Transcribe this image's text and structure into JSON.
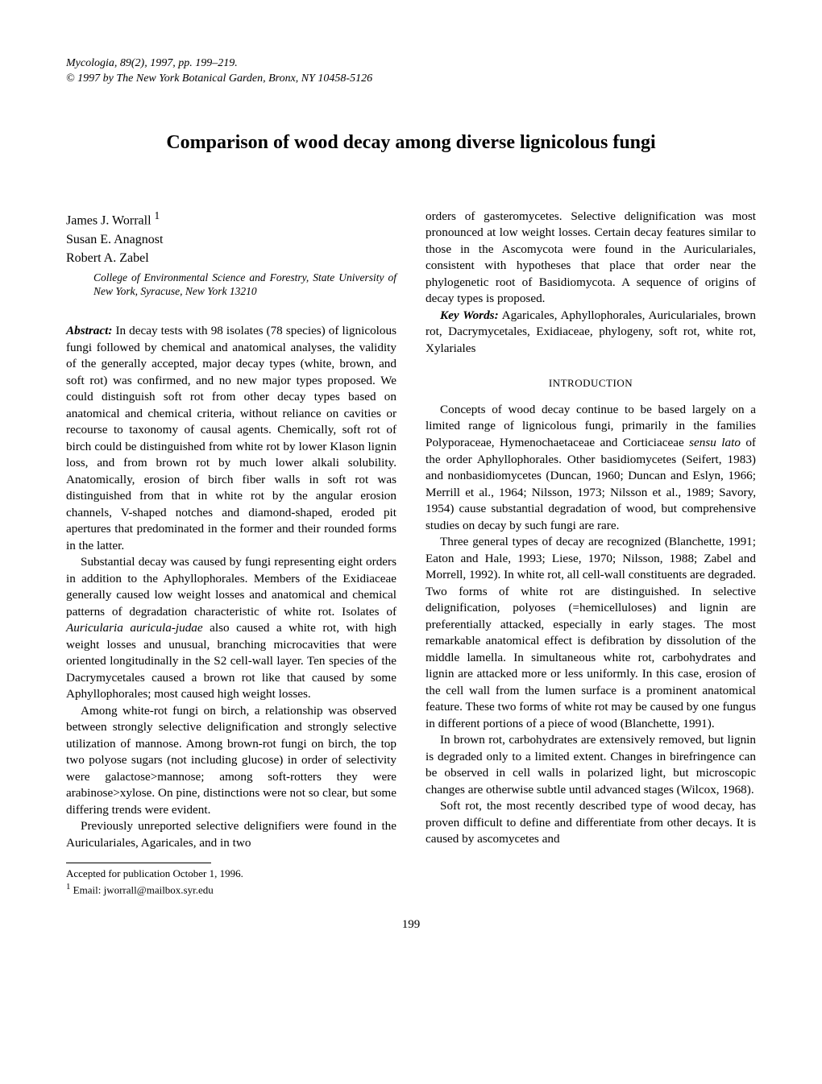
{
  "header": {
    "line1": "Mycologia, 89(2), 1997, pp. 199–219.",
    "line2": "© 1997 by The New York Botanical Garden, Bronx, NY 10458-5126"
  },
  "title": "Comparison of wood decay among diverse lignicolous fungi",
  "authors": {
    "a1": "James J. Worrall ",
    "a1_sup": "1",
    "a2": "Susan E. Anagnost",
    "a3": "Robert A. Zabel"
  },
  "affiliation": "College of Environmental Science and Forestry, State University of New York, Syracuse, New York 13210",
  "abstract_label": "Abstract:",
  "abstract_p1_rest": "   In decay tests with 98 isolates (78 species) of lignicolous fungi followed by chemical and anatomical analyses, the validity of the generally accepted, major decay types (white, brown, and soft rot) was confirmed, and no new major types proposed. We could distinguish soft rot from other decay types based on anatomical and chemical criteria, without reliance on cavities or recourse to taxonomy of causal agents. Chemically, soft rot of birch could be distinguished from white rot by lower Klason lignin loss, and from brown rot by much lower alkali solubility. Anatomically, erosion of birch fiber walls in soft rot was distinguished from that in white rot by the angular erosion channels, V-shaped notches and diamond-shaped, eroded pit apertures that predominated in the former and their rounded forms in the latter.",
  "abstract_p2a": "Substantial decay was caused by fungi representing eight orders in addition to the Aphyllophorales. Members of the Exidiaceae generally caused low weight losses and anatomical and chemical patterns of degradation characteristic of white rot. Isolates of ",
  "abstract_p2_ital": "Auricularia auricula-judae",
  "abstract_p2b": " also caused a white rot, with high weight losses and unusual, branching microcavities that were oriented longitudinally in the S2 cell-wall layer. Ten species of the Dacrymycetales caused a brown rot like that caused by some Aphyllophorales; most caused high weight losses.",
  "abstract_p3": "Among white-rot fungi on birch, a relationship was observed between strongly selective delignification and strongly selective utilization of mannose. Among brown-rot fungi on birch, the top two polyose sugars (not including glucose) in order of selectivity were galactose>mannose; among soft-rotters they were arabinose>xylose. On pine, distinctions were not so clear, but some differing trends were evident.",
  "abstract_p4": "Previously unreported selective delignifiers were found in the Auriculariales, Agaricales, and in two",
  "footnote1": "Accepted for publication October 1, 1996.",
  "footnote2_sup": "1",
  "footnote2": " Email: jworrall@mailbox.syr.edu",
  "right_p1": "orders of gasteromycetes. Selective delignification was most pronounced at low weight losses. Certain decay features similar to those in the Ascomycota were found in the Auriculariales, consistent with hypotheses that place that order near the phylogenetic root of Basidiomycota. A sequence of origins of decay types is proposed.",
  "keywords_label": "Key Words:",
  "keywords_text": "   Agaricales, Aphyllophorales, Auriculariales, brown rot, Dacrymycetales, Exidiaceae, phylogeny, soft rot, white rot, Xylariales",
  "introduction_heading": "INTRODUCTION",
  "intro_p1a": "Concepts of wood decay continue to be based largely on a limited range of lignicolous fungi, primarily in the families Polyporaceae, Hymenochaetaceae and Corticiaceae ",
  "intro_p1_ital": "sensu lato",
  "intro_p1b": " of the order Aphyllophorales. Other basidiomycetes (Seifert, 1983) and nonbasidiomycetes (Duncan, 1960; Duncan and Eslyn, 1966; Merrill et al., 1964; Nilsson, 1973; Nilsson et al., 1989; Savory, 1954) cause substantial degradation of wood, but comprehensive studies on decay by such fungi are rare.",
  "intro_p2": "Three general types of decay are recognized (Blanchette, 1991; Eaton and Hale, 1993; Liese, 1970; Nilsson, 1988; Zabel and Morrell, 1992). In white rot, all cell-wall constituents are degraded. Two forms of white rot are distinguished. In selective delignification, polyoses (=hemicelluloses) and lignin are preferentially attacked, especially in early stages. The most remarkable anatomical effect is defibration by dissolution of the middle lamella. In simultaneous white rot, carbohydrates and lignin are attacked more or less uniformly. In this case, erosion of the cell wall from the lumen surface is a prominent anatomical feature. These two forms of white rot may be caused by one fungus in different portions of a piece of wood (Blanchette, 1991).",
  "intro_p3": "In brown rot, carbohydrates are extensively removed, but lignin is degraded only to a limited extent. Changes in birefringence can be observed in cell walls in polarized light, but microscopic changes are otherwise subtle until advanced stages (Wilcox, 1968).",
  "intro_p4": "Soft rot, the most recently described type of wood decay, has proven difficult to define and differentiate from other decays. It is caused by ascomycetes and",
  "page_number": "199"
}
